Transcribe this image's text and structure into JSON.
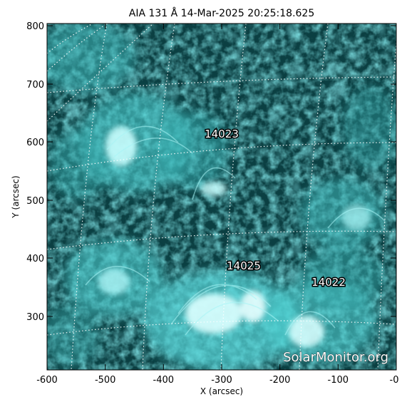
{
  "title": "AIA 131 Å 14-Mar-2025 20:25:18.625",
  "x_axis": {
    "label": "X (arcsec)",
    "ticks": [
      "-600",
      "-500",
      "-400",
      "-300",
      "-200",
      "-100",
      "-0"
    ]
  },
  "y_axis": {
    "label": "Y (arcsec)",
    "ticks": [
      "800",
      "700",
      "600",
      "500",
      "400",
      "300"
    ]
  },
  "active_regions": [
    {
      "label": "14023"
    },
    {
      "label": "14025"
    },
    {
      "label": "14022"
    }
  ],
  "watermark": "SolarMonitor.org",
  "colors": {
    "background": "#0a3a3c",
    "emission": "#5fe8ea",
    "bright": "#e8ffff",
    "grid": "#ffffff"
  }
}
